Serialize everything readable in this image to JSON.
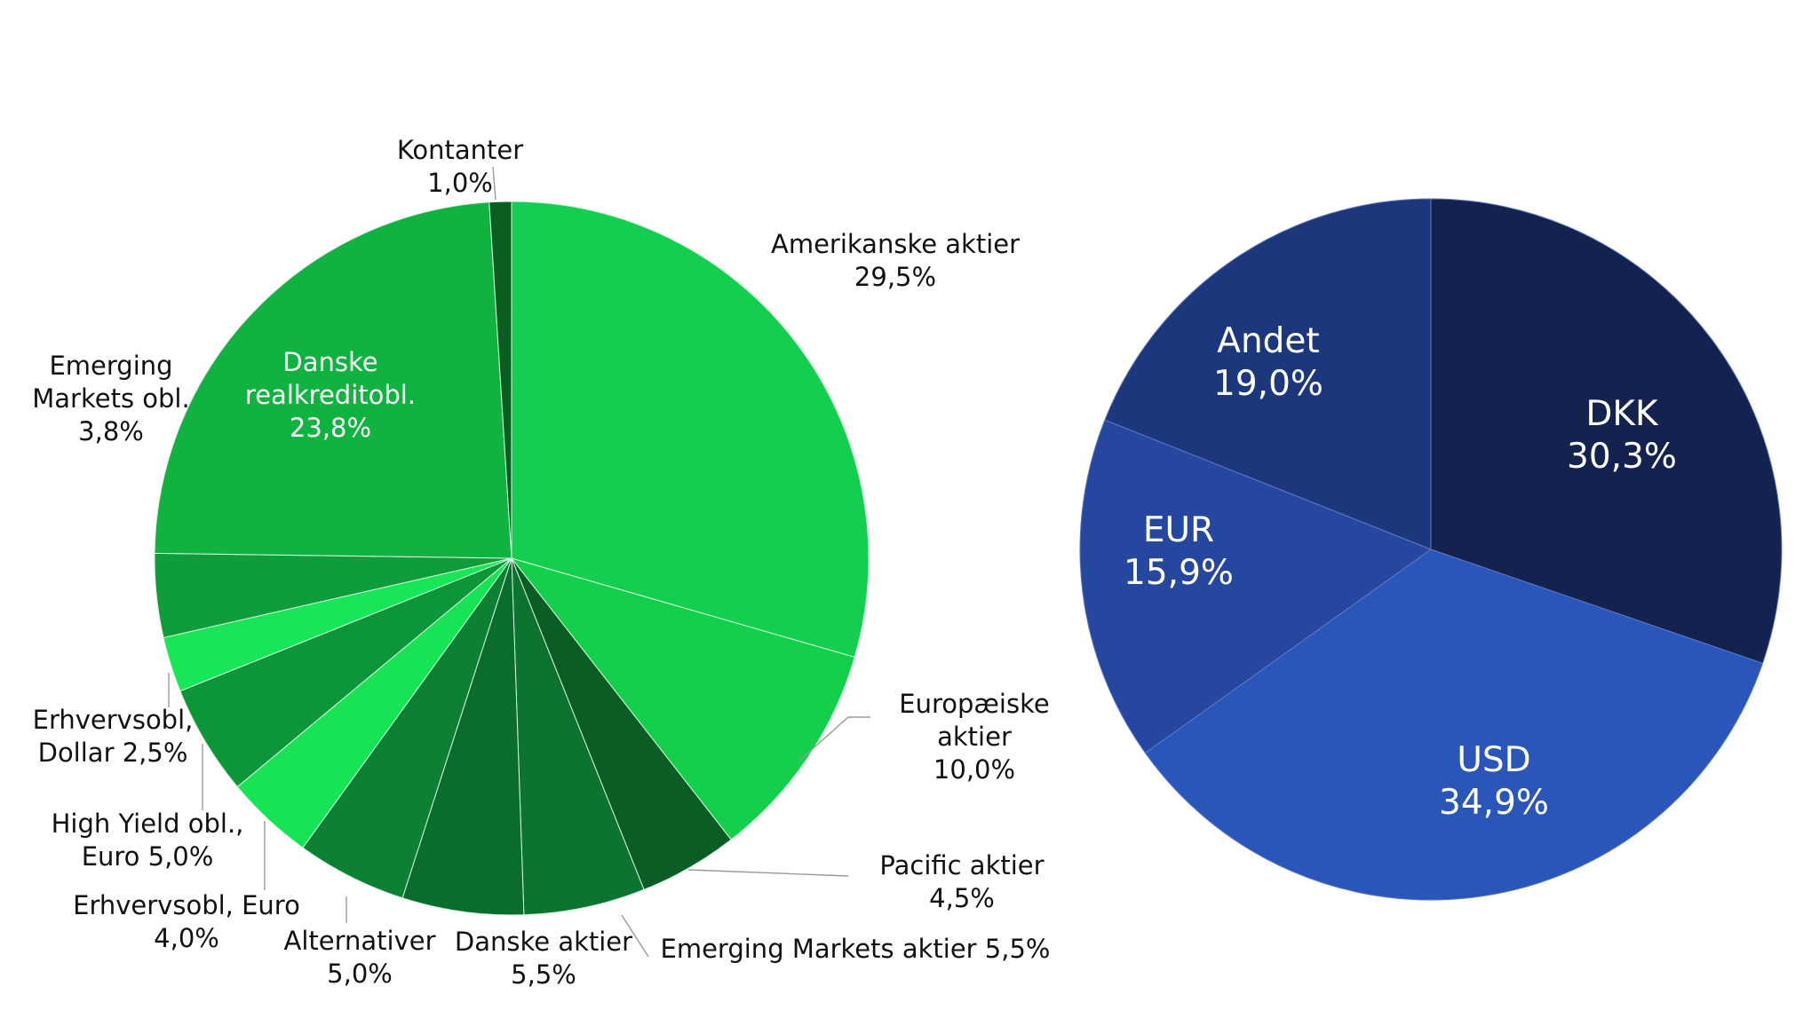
{
  "chart_data": [
    {
      "type": "pie",
      "title": "",
      "categories": [
        "Amerikanske aktier",
        "Europæiske aktier",
        "Pacific aktier",
        "Emerging Markets aktier",
        "Danske aktier",
        "Alternativer",
        "Erhvervsobl, Euro",
        "High Yield obl., Euro",
        "Erhvervsobl, Dollar",
        "Emerging Markets obl.",
        "Danske realkreditobl.",
        "Kontanter"
      ],
      "values": [
        29.5,
        10.0,
        4.5,
        5.5,
        5.5,
        5.0,
        4.0,
        5.0,
        2.5,
        3.8,
        23.8,
        1.0
      ],
      "value_labels": [
        "29,5%",
        "10,0%",
        "4,5%",
        "5,5%",
        "5,5%",
        "5,0%",
        "4,0%",
        "5,0%",
        "2,5%",
        "3,8%",
        "23,8%",
        "1,0%"
      ],
      "label_lines": [
        [
          "Amerikanske aktier",
          "29,5%"
        ],
        [
          "Europæiske",
          "aktier",
          "10,0%"
        ],
        [
          "Pacific aktier",
          "4,5%"
        ],
        [
          "Emerging Markets aktier 5,5%"
        ],
        [
          "Danske aktier",
          "5,5%"
        ],
        [
          "Alternativer",
          "5,0%"
        ],
        [
          "Erhvervsobl, Euro",
          "4,0%"
        ],
        [
          "High Yield obl.,",
          "Euro 5,0%"
        ],
        [
          "Erhvervsobl,",
          "Dollar 2,5%"
        ],
        [
          "Emerging",
          "Markets obl.",
          "3,8%"
        ],
        [
          "Danske",
          "realkreditobl.",
          "23,8%"
        ],
        [
          "Kontanter",
          "1,0%"
        ]
      ],
      "colors": [
        "#14cf4f",
        "#13cf4c",
        "#0a5e25",
        "#0c7330",
        "#0a6d2e",
        "#0c8134",
        "#16e455",
        "#0d9638",
        "#17e657",
        "#0f9c3a",
        "#10b340",
        "#0b5e22"
      ],
      "start_angle_deg": 0,
      "direction": "clockwise",
      "legend": "none"
    },
    {
      "type": "pie",
      "title": "",
      "categories": [
        "DKK",
        "USD",
        "EUR",
        "Andet"
      ],
      "values": [
        30.3,
        34.9,
        15.9,
        19.0
      ],
      "value_labels": [
        "30,3%",
        "34,9%",
        "15,9%",
        "19,0%"
      ],
      "label_lines": [
        [
          "DKK",
          "30,3%"
        ],
        [
          "USD",
          "34,9%"
        ],
        [
          "EUR",
          "15,9%"
        ],
        [
          "Andet",
          "19,0%"
        ]
      ],
      "colors": [
        "#13224f",
        "#2a55b9",
        "#2547a0",
        "#1c377b"
      ],
      "start_angle_deg": 0,
      "direction": "clockwise",
      "legend": "none"
    }
  ]
}
